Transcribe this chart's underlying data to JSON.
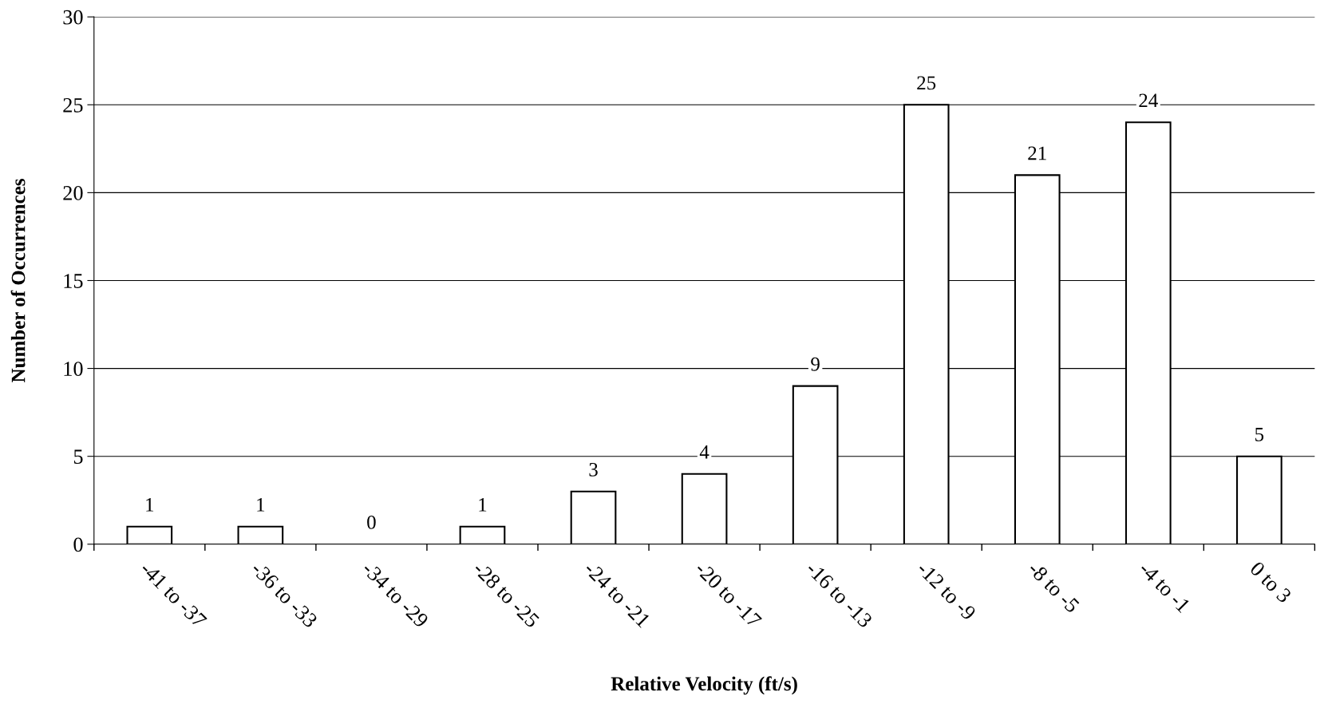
{
  "chart_data": {
    "type": "bar",
    "xlabel": "Relative Velocity (ft/s)",
    "ylabel": "Number of Occurrences",
    "categories": [
      "-41 to -37",
      "-36 to -33",
      "-34 to -29",
      "-28 to -25",
      "-24 to -21",
      "-20 to -17",
      "-16 to -13",
      "-12 to -9",
      "-8 to -5",
      "-4 to -1",
      "0 to 3"
    ],
    "values": [
      1,
      1,
      0,
      1,
      3,
      4,
      9,
      25,
      21,
      24,
      5
    ],
    "color": "#ffffff",
    "ylim": [
      0,
      30
    ],
    "yticks": [
      0,
      5,
      10,
      15,
      20,
      25,
      30
    ],
    "grid": "y",
    "data_labels": true,
    "legend": false
  }
}
